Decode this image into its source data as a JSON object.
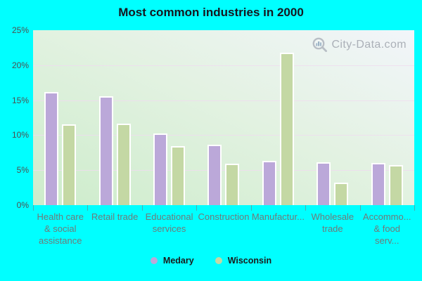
{
  "title": "Most common industries in 2000",
  "watermark": {
    "text": "City-Data.com",
    "icon": "magnifier-bar-chart-logo"
  },
  "y_axis": {
    "tick_labels": [
      "25%",
      "20%",
      "15%",
      "10%",
      "5%",
      "0%"
    ]
  },
  "legend": {
    "items": [
      {
        "label": "Medary",
        "color": "#bba8d9"
      },
      {
        "label": "Wisconsin",
        "color": "#c4d8a4"
      }
    ]
  },
  "chart_data": {
    "type": "bar",
    "title": "Most common industries in 2000",
    "categories": [
      "Health care & social assistance",
      "Retail trade",
      "Educational services",
      "Construction",
      "Manufactur...",
      "Wholesale trade",
      "Accommo... & food serv..."
    ],
    "category_display_lines": [
      [
        "Health care",
        "& social",
        "assistance"
      ],
      [
        "Retail trade"
      ],
      [
        "Educational",
        "services"
      ],
      [
        "Construction"
      ],
      [
        "Manufactur..."
      ],
      [
        "Wholesale",
        "trade"
      ],
      [
        "Accommo...",
        "& food serv..."
      ]
    ],
    "series": [
      {
        "name": "Medary",
        "color": "#bba8d9",
        "values": [
          16.2,
          15.6,
          10.2,
          8.6,
          6.3,
          6.1,
          6.0
        ]
      },
      {
        "name": "Wisconsin",
        "color": "#c4d8a4",
        "values": [
          11.5,
          11.6,
          8.4,
          5.9,
          21.8,
          3.2,
          5.7
        ]
      }
    ],
    "unit": "%",
    "ylim": [
      0,
      25
    ],
    "y_ticks": [
      25,
      20,
      15,
      10,
      5,
      0
    ],
    "grid": "horizontal",
    "legend_position": "bottom"
  },
  "colors": {
    "page_background": "#00ffff",
    "plot_gradient_bottom_left": "#cdeccb",
    "plot_gradient_top_right": "#f2f5fa",
    "gridline": "#eedcee",
    "title_text": "#16161f",
    "axis_text": "#4e4e4e",
    "category_text": "#6f7a7a",
    "legend_text": "#1a1a1a",
    "watermark_text": "#a6abb3"
  }
}
